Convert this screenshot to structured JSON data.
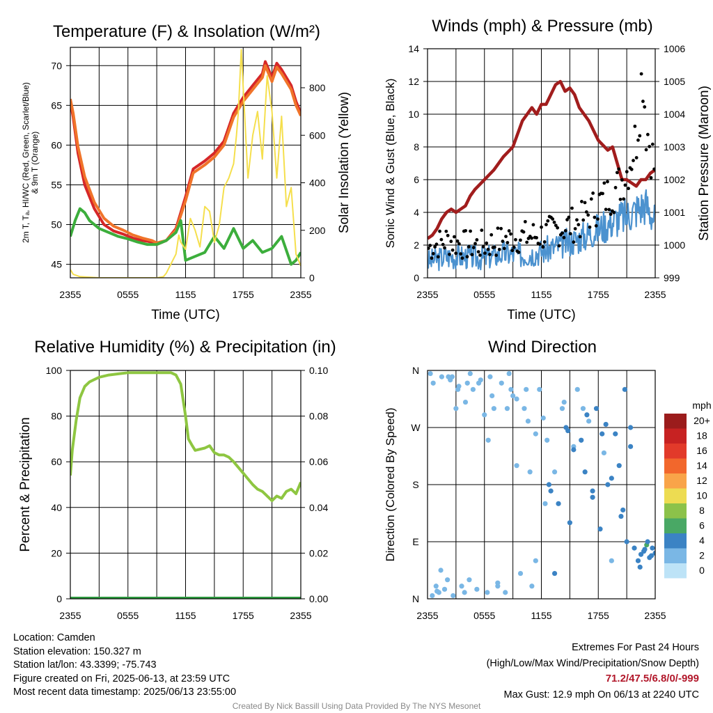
{
  "colors": {
    "t2m": "#d62728",
    "dewpoint": "#3cae3c",
    "index": "#e0a020",
    "t9m": "#f0742a",
    "insolation": "#f5df4d",
    "wind": "#4c92cf",
    "gust": "#000000",
    "pressure": "#a11d1d",
    "rh": "#8ec641",
    "precip": "#2e9a40",
    "extremes": "#b2182b",
    "credit": "#888888"
  },
  "chart_data": [
    {
      "id": "temperature",
      "type": "line",
      "title": "Temperature (F) & Insolation (W/m²)",
      "xlabel": "Time (UTC)",
      "ylabel_lines": [
        "2m T, Tₐ, HI/WC (Red, Green, Scarlet/Blue)",
        "& 9m T (Orange)"
      ],
      "y2label": "Solar Insolation (Yellow)",
      "x_ticks": [
        "2355",
        "0555",
        "1155",
        "1755",
        "2355"
      ],
      "x_range_hours": [
        0,
        24
      ],
      "ylim": [
        43.3,
        72.3
      ],
      "y_ticks": [
        45,
        50,
        55,
        60,
        65,
        70
      ],
      "y2lim": [
        0,
        970
      ],
      "y2_ticks": [
        0,
        200,
        400,
        600,
        800
      ],
      "series": [
        {
          "name": "2m T",
          "color": "#d62728",
          "axis": "left",
          "x": [
            0,
            0.3,
            0.8,
            1.5,
            2.5,
            3.5,
            4.5,
            5.5,
            6.5,
            7.5,
            8.5,
            9.0,
            10.0,
            11.0,
            12.0,
            12.8,
            14.0,
            15.0,
            16.0,
            17.0,
            18.0,
            19.0,
            20.0,
            20.3,
            21.0,
            21.5,
            22.0,
            22.5,
            23.0,
            23.5,
            24.0
          ],
          "y": [
            65.5,
            63.5,
            59.0,
            55.0,
            52.0,
            50.0,
            49.2,
            48.8,
            48.3,
            48.0,
            47.8,
            47.5,
            48.0,
            49.5,
            53.5,
            57.0,
            58.0,
            59.0,
            60.5,
            64.0,
            66.0,
            67.5,
            69.0,
            70.5,
            68.5,
            70.3,
            69.5,
            68.5,
            67.5,
            65.5,
            64.0
          ]
        },
        {
          "name": "9m T",
          "color": "#f0742a",
          "axis": "left",
          "x": [
            0,
            0.3,
            0.8,
            1.5,
            2.5,
            3.5,
            4.5,
            5.5,
            6.5,
            7.5,
            8.5,
            9.0,
            10.0,
            11.0,
            12.0,
            12.8,
            14.0,
            15.0,
            16.0,
            17.0,
            18.0,
            19.0,
            20.0,
            20.3,
            21.0,
            21.5,
            22.0,
            22.5,
            23.0,
            23.5,
            24.0
          ],
          "y": [
            65.8,
            64.0,
            59.8,
            56.0,
            52.8,
            50.8,
            49.8,
            49.3,
            48.7,
            48.3,
            48.0,
            47.7,
            48.0,
            49.3,
            53.0,
            56.5,
            57.5,
            58.5,
            60.0,
            63.5,
            65.5,
            67.0,
            68.5,
            70.0,
            68.0,
            69.8,
            69.0,
            68.0,
            67.0,
            65.0,
            63.7
          ]
        },
        {
          "name": "Dewpoint",
          "color": "#3cae3c",
          "axis": "left",
          "x": [
            0,
            0.5,
            1.0,
            1.5,
            2.0,
            3.0,
            4.0,
            5.0,
            6.0,
            7.0,
            8.0,
            9.0,
            10.0,
            11.0,
            11.5,
            12.0,
            13.0,
            14.0,
            15.0,
            16.0,
            17.0,
            18.0,
            19.0,
            20.0,
            21.0,
            22.0,
            23.0,
            23.5,
            24.0
          ],
          "y": [
            48.5,
            50.5,
            52.0,
            51.5,
            50.5,
            49.5,
            49.0,
            48.5,
            48.2,
            47.8,
            47.5,
            47.5,
            48.0,
            49.0,
            50.5,
            45.5,
            46.0,
            46.5,
            48.5,
            47.0,
            49.5,
            47.0,
            48.0,
            46.5,
            47.0,
            48.5,
            45.0,
            45.5,
            46.5
          ]
        },
        {
          "name": "Solar Insolation",
          "color": "#f5df4d",
          "axis": "right",
          "x": [
            0,
            0.3,
            1.0,
            3.0,
            5.0,
            7.0,
            9.0,
            9.7,
            10.0,
            10.5,
            11.0,
            11.3,
            11.5,
            12.0,
            12.5,
            13.0,
            13.5,
            14.0,
            14.5,
            15.0,
            15.5,
            16.0,
            16.5,
            17.0,
            17.3,
            17.5,
            17.8,
            18.0,
            18.5,
            19.0,
            19.5,
            20.0,
            20.5,
            21.0,
            21.5,
            22.0,
            22.3,
            22.5,
            23.0,
            23.5,
            24.0
          ],
          "y": [
            35,
            15,
            5,
            0,
            0,
            0,
            0,
            5,
            20,
            60,
            100,
            180,
            150,
            120,
            250,
            200,
            130,
            300,
            280,
            150,
            220,
            380,
            420,
            480,
            600,
            700,
            960,
            800,
            420,
            600,
            700,
            500,
            850,
            700,
            420,
            680,
            450,
            300,
            380,
            100,
            50
          ]
        }
      ]
    },
    {
      "id": "winds",
      "type": "line",
      "title": "Winds (mph) & Pressure (mb)",
      "xlabel": "Time (UTC)",
      "ylabel": "Sonic Wind & Gust (Blue, Black)",
      "y2label": "Station Pressure (Maroon)",
      "x_ticks": [
        "2355",
        "0555",
        "1155",
        "1755",
        "2355"
      ],
      "x_range_hours": [
        0,
        24
      ],
      "ylim": [
        0,
        14
      ],
      "y_ticks": [
        0,
        2,
        4,
        6,
        8,
        10,
        12,
        14
      ],
      "y2lim": [
        999,
        1006
      ],
      "y2_ticks": [
        999,
        1000,
        1001,
        1002,
        1003,
        1004,
        1005,
        1006
      ],
      "series": [
        {
          "name": "Station Pressure",
          "color": "#a11d1d",
          "axis": "right",
          "x": [
            0,
            0.5,
            1.0,
            1.5,
            2.0,
            2.5,
            3.0,
            3.5,
            4.0,
            4.5,
            5.0,
            6.0,
            7.0,
            8.0,
            9.0,
            10.0,
            11.0,
            11.5,
            12.0,
            12.5,
            13.0,
            13.5,
            14.0,
            14.5,
            15.0,
            15.5,
            16.0,
            17.0,
            18.0,
            19.0,
            19.5,
            20.0,
            20.5,
            21.0,
            21.5,
            22.0,
            22.5,
            23.0,
            23.5,
            24.0
          ],
          "y": [
            1000.2,
            1000.3,
            1000.5,
            1000.8,
            1001.0,
            1001.1,
            1001.0,
            1001.1,
            1001.2,
            1001.5,
            1001.7,
            1002.0,
            1002.3,
            1002.7,
            1003.0,
            1003.8,
            1004.2,
            1004.0,
            1004.3,
            1004.3,
            1004.6,
            1004.9,
            1005.0,
            1004.7,
            1004.8,
            1004.6,
            1004.2,
            1003.8,
            1003.2,
            1002.9,
            1003.0,
            1002.5,
            1002.0,
            1002.0,
            1001.9,
            1001.8,
            1002.0,
            1002.0,
            1002.2,
            1002.3
          ]
        },
        {
          "name": "Sonic Wind",
          "color": "#4c92cf",
          "axis": "left",
          "x": [
            0,
            2,
            4,
            6,
            8,
            10,
            12,
            14,
            16,
            18,
            19,
            20,
            21,
            22,
            23,
            24
          ],
          "y": [
            1.0,
            1.3,
            1.3,
            1.2,
            1.5,
            1.4,
            1.6,
            2.0,
            2.4,
            3.0,
            3.3,
            3.6,
            3.8,
            4.2,
            4.5,
            3.5
          ]
        },
        {
          "name": "Gust",
          "color": "#000000",
          "axis": "left",
          "x": [
            0,
            2,
            4,
            6,
            8,
            10,
            12,
            14,
            16,
            18,
            20,
            21,
            22,
            22.7,
            23,
            24
          ],
          "y": [
            1.8,
            2.3,
            2.0,
            2.0,
            2.3,
            2.5,
            2.6,
            3.0,
            3.4,
            4.5,
            5.5,
            6.5,
            8.5,
            12.9,
            9.5,
            6.5
          ]
        }
      ]
    },
    {
      "id": "humidity",
      "type": "line",
      "title": "Relative Humidity (%) & Precipitation (in)",
      "xlabel": "",
      "ylabel": "Percent & Precipitation",
      "x_ticks": [
        "2355",
        "0555",
        "1155",
        "1755",
        "2355"
      ],
      "x_range_hours": [
        0,
        24
      ],
      "ylim": [
        0,
        100
      ],
      "y_ticks": [
        0,
        20,
        40,
        60,
        80,
        100
      ],
      "y2lim": [
        0,
        0.1
      ],
      "y2_ticks": [
        "0.00",
        "0.02",
        "0.04",
        "0.06",
        "0.08",
        "0.10"
      ],
      "series": [
        {
          "name": "Relative Humidity",
          "color": "#8ec641",
          "axis": "left",
          "x": [
            0,
            0.2,
            0.6,
            1.0,
            1.5,
            2.0,
            2.5,
            3.0,
            4.0,
            5.0,
            6.0,
            7.0,
            8.0,
            9.0,
            10.0,
            10.5,
            11.0,
            11.5,
            12.0,
            12.3,
            12.7,
            13.0,
            14.0,
            14.5,
            15.0,
            15.5,
            16.0,
            16.5,
            17.0,
            18.0,
            19.0,
            19.5,
            20.0,
            20.5,
            21.0,
            21.5,
            22.0,
            22.5,
            23.0,
            23.5,
            24.0
          ],
          "y": [
            54,
            65,
            78,
            88,
            93,
            95,
            96,
            97,
            98,
            98.5,
            99,
            99,
            99,
            99,
            99,
            99,
            98,
            94,
            80,
            70,
            67,
            65,
            66,
            67,
            64,
            63,
            63,
            62,
            60,
            55,
            50,
            48,
            47,
            45,
            43,
            45,
            44,
            47,
            48,
            46,
            51
          ]
        },
        {
          "name": "Precipitation",
          "color": "#2e9a40",
          "axis": "right",
          "x": [
            0,
            24
          ],
          "y": [
            0,
            0
          ]
        }
      ]
    },
    {
      "id": "direction",
      "type": "scatter",
      "title": "Wind Direction",
      "xlabel": "",
      "ylabel": "Direction (Colored By Speed)",
      "x_ticks": [
        "2355",
        "0555",
        "1155",
        "1755",
        "2355"
      ],
      "x_range_hours": [
        0,
        24
      ],
      "y_ticks": [
        "N",
        "E",
        "S",
        "W",
        "N"
      ],
      "ylim_degrees": [
        0,
        360
      ],
      "legend": {
        "title": "mph",
        "labels": [
          "20+",
          "18",
          "16",
          "14",
          "12",
          "10",
          "8",
          "6",
          "4",
          "2",
          "0"
        ],
        "colors": [
          "#9b1c1c",
          "#c72222",
          "#e23a2a",
          "#f2672c",
          "#f9a449",
          "#eddc52",
          "#8cc24a",
          "#49a865",
          "#3b83c4",
          "#7ab7e5",
          "#bde3f7"
        ]
      },
      "series": [
        {
          "name": "Direction",
          "x": [
            0.3,
            0.6,
            0.9,
            1.2,
            1.5,
            1.8,
            2.1,
            2.4,
            2.7,
            3.0,
            3.3,
            3.6,
            3.9,
            4.2,
            4.5,
            4.8,
            5.2,
            5.6,
            6.0,
            6.3,
            6.6,
            7.0,
            7.4,
            7.8,
            8.2,
            8.6,
            9.0,
            9.4,
            9.8,
            10.2,
            10.6,
            11.0,
            11.4,
            11.8,
            12.2,
            12.6,
            13.0,
            13.4,
            13.8,
            14.2,
            14.6,
            15.0,
            15.4,
            15.8,
            16.2,
            16.6,
            17.0,
            17.4,
            17.8,
            18.2,
            18.6,
            19.0,
            19.4,
            19.8,
            20.2,
            20.6,
            21.0,
            21.4,
            21.8,
            22.2,
            22.5,
            22.8,
            23.1,
            23.4,
            23.7,
            24.0,
            0.5,
            1.4,
            2.2,
            3.2,
            4.4,
            5.4,
            6.4,
            7.4,
            8.4,
            9.4,
            10.4,
            11.4,
            12.4,
            13.4,
            14.4,
            15.4,
            16.4,
            17.4,
            18.4,
            19.4,
            20.4,
            21.4,
            22.4,
            23.2,
            1.0,
            2.6,
            4.0,
            6.8,
            8.8,
            10.8,
            12.8,
            14.8,
            16.8,
            18.8,
            20.8,
            22.9,
            23.6
          ],
          "y": [
            355,
            340,
            20,
            10,
            350,
            15,
            30,
            345,
            5,
            300,
            335,
            20,
            10,
            340,
            355,
            330,
            15,
            345,
            290,
            10,
            350,
            300,
            25,
            340,
            10,
            355,
            320,
            315,
            40,
            300,
            280,
            20,
            260,
            330,
            285,
            250,
            170,
            200,
            150,
            300,
            270,
            120,
            240,
            330,
            250,
            200,
            280,
            160,
            300,
            110,
            230,
            180,
            60,
            260,
            210,
            140,
            90,
            270,
            80,
            60,
            70,
            75,
            85,
            65,
            80,
            72,
            5,
            45,
            350,
            330,
            30,
            340,
            250,
            20,
            300,
            210,
            330,
            60,
            150,
            40,
            310,
            235,
            300,
            170,
            260,
            190,
            130,
            240,
            50,
            90,
            12,
            350,
            310,
            320,
            330,
            200,
            180,
            265,
            290,
            275,
            330,
            78,
            68
          ],
          "speed": [
            1,
            1,
            2,
            1,
            1,
            2,
            1,
            1,
            1,
            2,
            1,
            1,
            2,
            1,
            1,
            1,
            2,
            1,
            2,
            1,
            1,
            2,
            1,
            1,
            1,
            1,
            1,
            1,
            2,
            2,
            1,
            1,
            1,
            2,
            2,
            2,
            3,
            2,
            3,
            2,
            3,
            3,
            2,
            2,
            3,
            3,
            2,
            3,
            3,
            3,
            2,
            3,
            2,
            3,
            3,
            3,
            4,
            3,
            4,
            4,
            4,
            4,
            5,
            4,
            4,
            4,
            1,
            1,
            1,
            2,
            1,
            1,
            2,
            1,
            2,
            1,
            2,
            2,
            2,
            3,
            2,
            3,
            2,
            3,
            3,
            3,
            3,
            3,
            4,
            4,
            1,
            1,
            1,
            1,
            2,
            2,
            3,
            3,
            3,
            3,
            3,
            4,
            4
          ]
        }
      ]
    }
  ],
  "info": {
    "location": "Location: Camden",
    "elevation": "Station elevation: 150.327 m",
    "latlon": "Station lat/lon: 43.3399; -75.743",
    "created": "Figure created on Fri, 2025-06-13, at 23:59 UTC",
    "recent": "Most recent data timestamp: 2025/06/13 23:55:00"
  },
  "extremes": {
    "title": "Extremes For Past 24 Hours",
    "subtitle": "(High/Low/Max Wind/Precipitation/Snow Depth)",
    "values": "71.2/47.5/6.8/0/-999",
    "max_gust": "Max Gust: 12.9 mph On 06/13 at 2240 UTC"
  },
  "credit": "Created By Nick Bassill Using Data Provided By The NYS Mesonet"
}
